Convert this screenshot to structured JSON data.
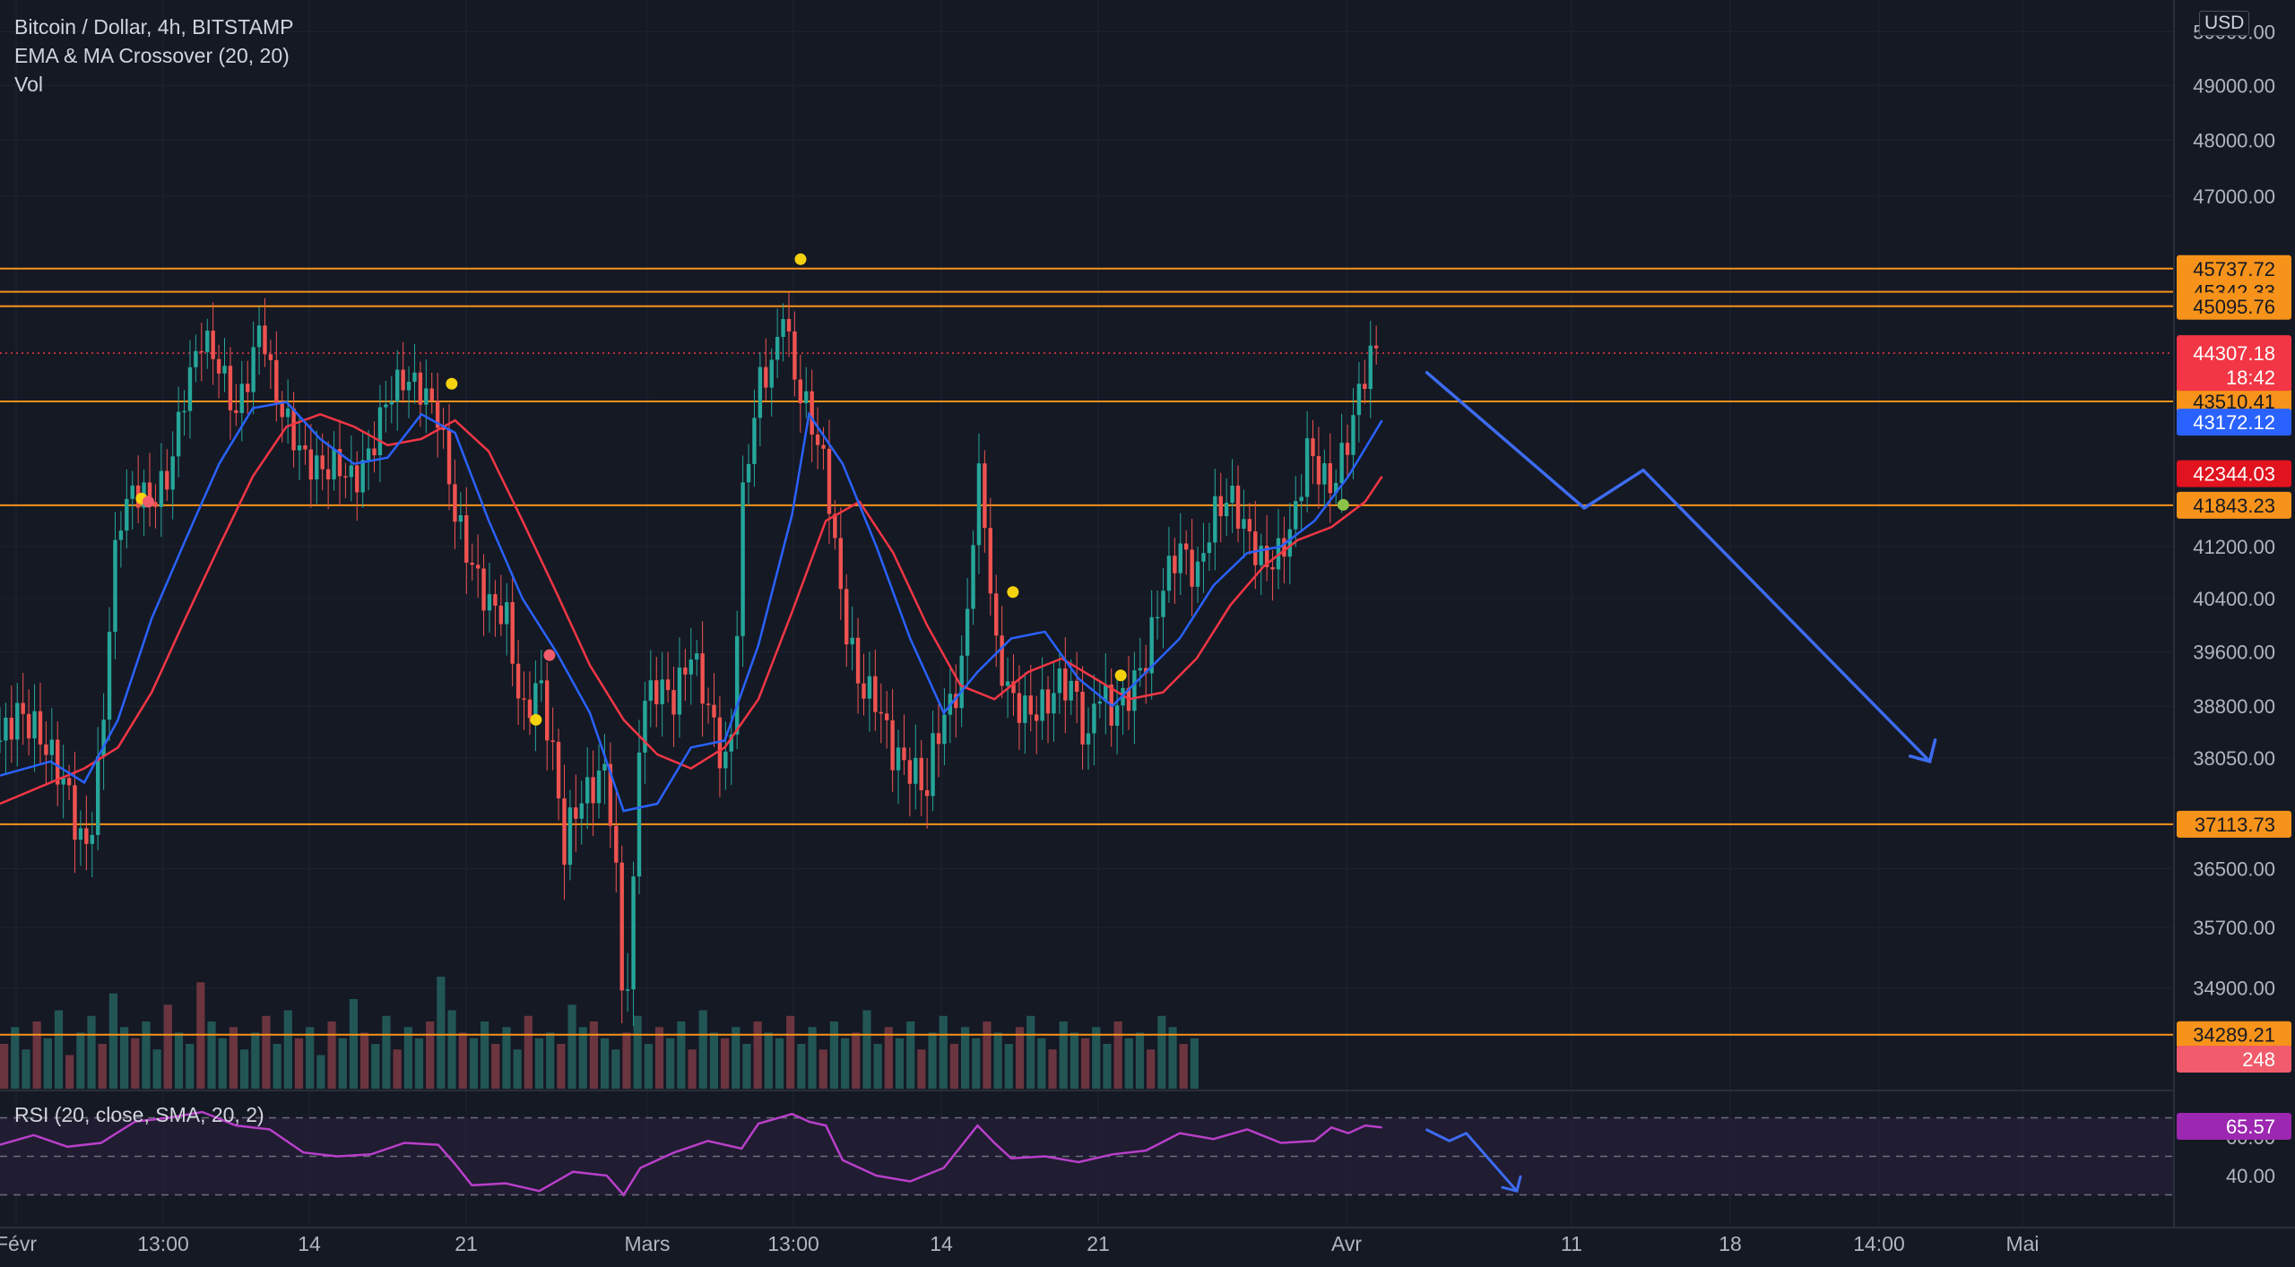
{
  "header": {
    "symbol": "Bitcoin / Dollar, 4h, BITSTAMP",
    "indicator_1": "EMA & MA Crossover (20, 20)",
    "indicator_2": "Vol"
  },
  "currency": "USD",
  "rsi_panel": {
    "label": "RSI (20, close, SMA, 20, 2)",
    "current_value": "65.57",
    "upper_band": 70,
    "lower_band": 30,
    "ticks": [
      "60.00",
      "40.00"
    ]
  },
  "colors": {
    "background": "#151924",
    "grid": "#1f2330",
    "up_candle": "#26a69a",
    "down_candle": "#ef5350",
    "ema": "#2962ff",
    "ma": "#f23645",
    "level_line": "#f7931a",
    "projection_arrow": "#3d6cf2",
    "rsi_line": "#b83fc9",
    "rsi_band": "#2a1f3d",
    "signal_dot_yellow": "#f5d20e",
    "signal_dot_red": "#f05c6b",
    "signal_dot_green": "#8bc34a"
  },
  "chart_data": {
    "type": "line",
    "title": "Bitcoin / Dollar, 4h, BITSTAMP",
    "price_axis": {
      "scale": "log",
      "ticks": [
        "50000.00",
        "49000.00",
        "48000.00",
        "47000.00",
        "41200.00",
        "40400.00",
        "39600.00",
        "38800.00",
        "38050.00",
        "36500.00",
        "35700.00",
        "34900.00"
      ],
      "range": [
        33600,
        50600
      ]
    },
    "time_axis": {
      "ticks": [
        "Févr",
        "13:00",
        "14",
        "21",
        "Mars",
        "13:00",
        "14",
        "21",
        "Avr",
        "11",
        "18",
        "14:00",
        "Mai"
      ]
    },
    "horizontal_levels": [
      {
        "label": "45737.72",
        "value": 45737.72
      },
      {
        "label": "45342.33",
        "value": 45342.33
      },
      {
        "label": "45095.76",
        "value": 45095.76
      },
      {
        "label": "43510.41",
        "value": 43510.41
      },
      {
        "label": "41843.23",
        "value": 41843.23
      },
      {
        "label": "37113.73",
        "value": 37113.73
      },
      {
        "label": "34289.21",
        "value": 34289.21
      }
    ],
    "current_price": {
      "label": "44307.18",
      "countdown": "18:42",
      "value": 44307.18
    },
    "ema_last": {
      "label": "43172.12",
      "value": 43172.12
    },
    "ma_last": {
      "label": "42344.03",
      "value": 42344.03
    },
    "volume_last": "248",
    "price_path": [
      [
        0.0,
        38300
      ],
      [
        0.01,
        38700
      ],
      [
        0.02,
        38500
      ],
      [
        0.03,
        38100
      ],
      [
        0.04,
        37600
      ],
      [
        0.045,
        37100
      ],
      [
        0.05,
        36700
      ],
      [
        0.055,
        37200
      ],
      [
        0.06,
        38200
      ],
      [
        0.065,
        40000
      ],
      [
        0.07,
        41600
      ],
      [
        0.08,
        42100
      ],
      [
        0.09,
        41900
      ],
      [
        0.1,
        42300
      ],
      [
        0.11,
        43700
      ],
      [
        0.12,
        44600
      ],
      [
        0.13,
        44100
      ],
      [
        0.14,
        43300
      ],
      [
        0.15,
        44200
      ],
      [
        0.155,
        44900
      ],
      [
        0.16,
        44000
      ],
      [
        0.165,
        43500
      ],
      [
        0.17,
        43200
      ],
      [
        0.18,
        42600
      ],
      [
        0.19,
        42400
      ],
      [
        0.2,
        42500
      ],
      [
        0.21,
        42200
      ],
      [
        0.22,
        42700
      ],
      [
        0.23,
        43600
      ],
      [
        0.24,
        43900
      ],
      [
        0.25,
        43700
      ],
      [
        0.26,
        43300
      ],
      [
        0.265,
        42500
      ],
      [
        0.27,
        41700
      ],
      [
        0.28,
        40900
      ],
      [
        0.29,
        40300
      ],
      [
        0.3,
        40200
      ],
      [
        0.31,
        38600
      ],
      [
        0.32,
        39200
      ],
      [
        0.33,
        37800
      ],
      [
        0.335,
        36700
      ],
      [
        0.34,
        37300
      ],
      [
        0.35,
        37600
      ],
      [
        0.36,
        37900
      ],
      [
        0.365,
        36600
      ],
      [
        0.37,
        34500
      ],
      [
        0.375,
        35600
      ],
      [
        0.38,
        38800
      ],
      [
        0.39,
        39100
      ],
      [
        0.4,
        38900
      ],
      [
        0.41,
        39600
      ],
      [
        0.42,
        38800
      ],
      [
        0.43,
        37900
      ],
      [
        0.435,
        38500
      ],
      [
        0.44,
        41800
      ],
      [
        0.45,
        43800
      ],
      [
        0.46,
        44200
      ],
      [
        0.465,
        45200
      ],
      [
        0.47,
        44000
      ],
      [
        0.48,
        43300
      ],
      [
        0.49,
        42400
      ],
      [
        0.5,
        40200
      ],
      [
        0.51,
        39100
      ],
      [
        0.52,
        38900
      ],
      [
        0.53,
        38100
      ],
      [
        0.54,
        37900
      ],
      [
        0.55,
        37600
      ],
      [
        0.555,
        38400
      ],
      [
        0.56,
        38600
      ],
      [
        0.57,
        39200
      ],
      [
        0.575,
        40500
      ],
      [
        0.58,
        42400
      ],
      [
        0.585,
        41500
      ],
      [
        0.59,
        39700
      ],
      [
        0.6,
        38900
      ],
      [
        0.61,
        38700
      ],
      [
        0.62,
        38800
      ],
      [
        0.63,
        39200
      ],
      [
        0.64,
        38900
      ],
      [
        0.645,
        38000
      ],
      [
        0.65,
        39100
      ],
      [
        0.66,
        38700
      ],
      [
        0.67,
        39000
      ],
      [
        0.68,
        39500
      ],
      [
        0.69,
        40600
      ],
      [
        0.7,
        41200
      ],
      [
        0.71,
        40700
      ],
      [
        0.72,
        41700
      ],
      [
        0.73,
        42000
      ],
      [
        0.74,
        41400
      ],
      [
        0.75,
        40900
      ],
      [
        0.76,
        41100
      ],
      [
        0.77,
        41800
      ],
      [
        0.775,
        42800
      ],
      [
        0.78,
        42500
      ],
      [
        0.79,
        42100
      ],
      [
        0.8,
        42900
      ],
      [
        0.805,
        43500
      ],
      [
        0.81,
        44000
      ],
      [
        0.815,
        44400
      ],
      [
        0.82,
        44300
      ]
    ],
    "ema_path": [
      [
        0.0,
        37800
      ],
      [
        0.03,
        38000
      ],
      [
        0.05,
        37700
      ],
      [
        0.07,
        38600
      ],
      [
        0.09,
        40100
      ],
      [
        0.11,
        41300
      ],
      [
        0.13,
        42500
      ],
      [
        0.15,
        43400
      ],
      [
        0.17,
        43500
      ],
      [
        0.19,
        42900
      ],
      [
        0.21,
        42500
      ],
      [
        0.23,
        42600
      ],
      [
        0.25,
        43300
      ],
      [
        0.27,
        43000
      ],
      [
        0.29,
        41600
      ],
      [
        0.31,
        40400
      ],
      [
        0.33,
        39600
      ],
      [
        0.35,
        38700
      ],
      [
        0.37,
        37300
      ],
      [
        0.39,
        37400
      ],
      [
        0.41,
        38200
      ],
      [
        0.43,
        38300
      ],
      [
        0.45,
        39700
      ],
      [
        0.47,
        41700
      ],
      [
        0.48,
        43300
      ],
      [
        0.5,
        42500
      ],
      [
        0.52,
        41200
      ],
      [
        0.54,
        39800
      ],
      [
        0.56,
        38700
      ],
      [
        0.58,
        39300
      ],
      [
        0.6,
        39800
      ],
      [
        0.62,
        39900
      ],
      [
        0.64,
        39200
      ],
      [
        0.66,
        38800
      ],
      [
        0.68,
        39300
      ],
      [
        0.7,
        39800
      ],
      [
        0.72,
        40600
      ],
      [
        0.74,
        41100
      ],
      [
        0.76,
        41200
      ],
      [
        0.78,
        41600
      ],
      [
        0.8,
        42300
      ],
      [
        0.82,
        43200
      ]
    ],
    "ma_path": [
      [
        0.0,
        37400
      ],
      [
        0.03,
        37700
      ],
      [
        0.05,
        37900
      ],
      [
        0.07,
        38200
      ],
      [
        0.09,
        39000
      ],
      [
        0.11,
        40100
      ],
      [
        0.13,
        41200
      ],
      [
        0.15,
        42300
      ],
      [
        0.17,
        43100
      ],
      [
        0.19,
        43300
      ],
      [
        0.21,
        43100
      ],
      [
        0.23,
        42800
      ],
      [
        0.25,
        42900
      ],
      [
        0.27,
        43200
      ],
      [
        0.29,
        42700
      ],
      [
        0.31,
        41600
      ],
      [
        0.33,
        40500
      ],
      [
        0.35,
        39400
      ],
      [
        0.37,
        38600
      ],
      [
        0.39,
        38100
      ],
      [
        0.41,
        37900
      ],
      [
        0.43,
        38200
      ],
      [
        0.45,
        38900
      ],
      [
        0.47,
        40200
      ],
      [
        0.49,
        41600
      ],
      [
        0.51,
        41900
      ],
      [
        0.53,
        41100
      ],
      [
        0.55,
        40000
      ],
      [
        0.57,
        39100
      ],
      [
        0.59,
        38900
      ],
      [
        0.61,
        39300
      ],
      [
        0.63,
        39500
      ],
      [
        0.65,
        39200
      ],
      [
        0.67,
        38900
      ],
      [
        0.69,
        39000
      ],
      [
        0.71,
        39500
      ],
      [
        0.73,
        40300
      ],
      [
        0.75,
        40900
      ],
      [
        0.77,
        41300
      ],
      [
        0.79,
        41500
      ],
      [
        0.81,
        41900
      ],
      [
        0.82,
        42300
      ]
    ],
    "volume_bars": [
      40,
      55,
      35,
      60,
      45,
      70,
      30,
      50,
      65,
      40,
      85,
      55,
      45,
      60,
      35,
      75,
      50,
      40,
      95,
      60,
      45,
      55,
      35,
      50,
      65,
      40,
      70,
      45,
      55,
      30,
      60,
      45,
      80,
      50,
      40,
      65,
      35,
      55,
      45,
      60,
      100,
      70,
      50,
      45,
      60,
      40,
      55,
      35,
      65,
      45,
      50,
      40,
      75,
      55,
      60,
      45,
      35,
      50,
      65,
      40,
      55,
      45,
      60,
      35,
      70,
      50,
      45,
      55,
      40,
      60,
      50,
      45,
      65,
      40,
      55,
      35,
      60,
      45,
      50,
      70,
      40,
      55,
      45,
      60,
      35,
      50,
      65,
      40,
      55,
      45,
      60,
      50,
      40,
      55,
      65,
      45,
      35,
      60,
      50,
      45,
      55,
      40,
      60,
      45,
      50,
      35,
      65,
      55,
      40,
      45
    ],
    "signal_dots": [
      {
        "x": 0.084,
        "price": 41950,
        "color": "yellow"
      },
      {
        "x": 0.088,
        "price": 41900,
        "color": "red"
      },
      {
        "x": 0.268,
        "price": 43800,
        "color": "yellow"
      },
      {
        "x": 0.318,
        "price": 38600,
        "color": "yellow"
      },
      {
        "x": 0.326,
        "price": 39550,
        "color": "red"
      },
      {
        "x": 0.475,
        "price": 45900,
        "color": "yellow"
      },
      {
        "x": 0.601,
        "price": 40500,
        "color": "yellow"
      },
      {
        "x": 0.665,
        "price": 39250,
        "color": "yellow"
      },
      {
        "x": 0.797,
        "price": 41850,
        "color": "green"
      }
    ],
    "projection_price_path": [
      [
        0.846,
        44000
      ],
      [
        0.94,
        41800
      ],
      [
        0.975,
        42400
      ],
      [
        1.145,
        38000
      ]
    ],
    "rsi_path": [
      [
        0.0,
        56
      ],
      [
        0.02,
        61
      ],
      [
        0.04,
        55
      ],
      [
        0.06,
        57
      ],
      [
        0.08,
        68
      ],
      [
        0.1,
        70
      ],
      [
        0.12,
        73
      ],
      [
        0.14,
        66
      ],
      [
        0.16,
        64
      ],
      [
        0.18,
        52
      ],
      [
        0.2,
        50
      ],
      [
        0.22,
        51
      ],
      [
        0.24,
        57
      ],
      [
        0.26,
        56
      ],
      [
        0.27,
        46
      ],
      [
        0.28,
        35
      ],
      [
        0.3,
        36
      ],
      [
        0.32,
        32
      ],
      [
        0.34,
        42
      ],
      [
        0.36,
        40
      ],
      [
        0.37,
        30
      ],
      [
        0.38,
        44
      ],
      [
        0.4,
        52
      ],
      [
        0.42,
        58
      ],
      [
        0.44,
        54
      ],
      [
        0.45,
        67
      ],
      [
        0.47,
        72
      ],
      [
        0.48,
        68
      ],
      [
        0.49,
        66
      ],
      [
        0.5,
        48
      ],
      [
        0.52,
        40
      ],
      [
        0.54,
        37
      ],
      [
        0.56,
        44
      ],
      [
        0.58,
        66
      ],
      [
        0.59,
        57
      ],
      [
        0.6,
        49
      ],
      [
        0.62,
        50
      ],
      [
        0.64,
        47
      ],
      [
        0.66,
        51
      ],
      [
        0.68,
        53
      ],
      [
        0.7,
        62
      ],
      [
        0.72,
        59
      ],
      [
        0.74,
        64
      ],
      [
        0.76,
        57
      ],
      [
        0.78,
        58
      ],
      [
        0.79,
        65
      ],
      [
        0.8,
        62
      ],
      [
        0.81,
        66
      ],
      [
        0.82,
        65
      ]
    ],
    "rsi_projection": [
      [
        0.846,
        64
      ],
      [
        0.86,
        58
      ],
      [
        0.87,
        62
      ],
      [
        0.9,
        32
      ]
    ]
  }
}
